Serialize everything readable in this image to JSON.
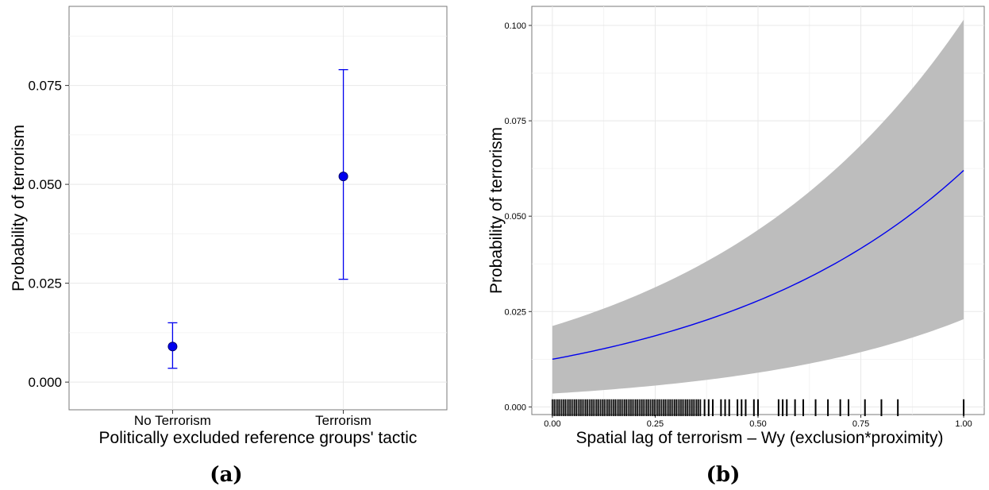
{
  "colors": {
    "point": "#0000ee",
    "line": "#0000ee",
    "band": "#bdbdbd",
    "grid": "#e8e8e8",
    "rug": "#000000"
  },
  "chart_data": [
    {
      "type": "scatter",
      "panel_label": "(a)",
      "xlabel": "Politically excluded reference groups' tactic",
      "ylabel": "Probability of terrorism",
      "categories": [
        "No Terrorism",
        "Terrorism"
      ],
      "ylim": [
        -0.007,
        0.095
      ],
      "yticks": [
        0.0,
        0.025,
        0.05,
        0.075
      ],
      "ytick_labels": [
        "0.000",
        "0.025",
        "0.050",
        "0.075"
      ],
      "grid": true,
      "points": [
        {
          "category": "No Terrorism",
          "y": 0.009,
          "lower": 0.0035,
          "upper": 0.015
        },
        {
          "category": "Terrorism",
          "y": 0.052,
          "lower": 0.026,
          "upper": 0.079
        }
      ]
    },
    {
      "type": "line",
      "panel_label": "(b)",
      "xlabel": "Spatial lag of terrorism – Wy (exclusion*proximity)",
      "ylabel": "Probability of terrorism",
      "xlim": [
        -0.05,
        1.05
      ],
      "ylim": [
        -0.002,
        0.105
      ],
      "xticks": [
        0.0,
        0.25,
        0.5,
        0.75,
        1.0
      ],
      "xtick_labels": [
        "0.00",
        "0.25",
        "0.50",
        "0.75",
        "1.00"
      ],
      "yticks": [
        0.0,
        0.025,
        0.05,
        0.075,
        0.1
      ],
      "ytick_labels": [
        "0.000",
        "0.025",
        "0.050",
        "0.075",
        "0.100"
      ],
      "grid": true,
      "fit": {
        "y_at_0": 0.0125,
        "y_at_1": 0.062
      },
      "ci_lower": {
        "y_at_0": 0.0035,
        "y_at_1": 0.023
      },
      "ci_upper": {
        "y_at_0": 0.0212,
        "y_at_1": 0.1015
      },
      "rug_dense_range": [
        0.0,
        0.36
      ],
      "rug_x": [
        0.37,
        0.38,
        0.39,
        0.41,
        0.42,
        0.43,
        0.45,
        0.46,
        0.47,
        0.49,
        0.5,
        0.55,
        0.56,
        0.57,
        0.59,
        0.61,
        0.64,
        0.67,
        0.7,
        0.72,
        0.76,
        0.8,
        0.84,
        1.0
      ]
    }
  ]
}
